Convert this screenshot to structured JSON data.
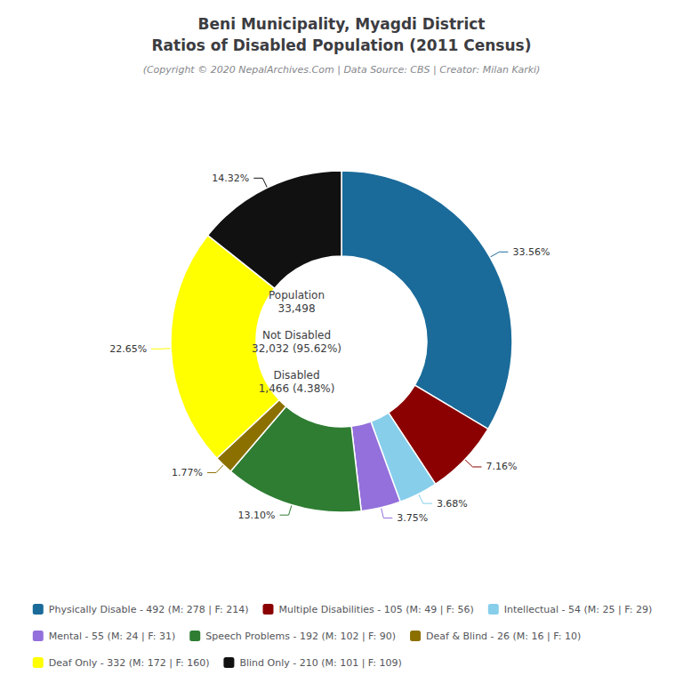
{
  "chart_data": {
    "type": "pie",
    "title": "Beni Municipality, Myagdi District\nRatios of Disabled Population (2011 Census)",
    "subtitle": "(Copyright © 2020 NepalArchives.Com | Data Source: CBS | Creator: Milan Karki)",
    "annotations": [
      "Population\n33,498\n\nNot Disabled\n32,032 (95.62%)\n\nDisabled\n1,466 (4.38%)"
    ],
    "categories": [
      "Physically Disable - 492 (M: 278 | F: 214)",
      "Multiple Disabilities - 105 (M: 49 | F: 56)",
      "Intellectual - 54 (M: 25 | F: 29)",
      "Mental - 55 (M: 24 | F: 31)",
      "Speech Problems - 192 (M: 102 | F: 90)",
      "Deaf & Blind - 26 (M: 16 | F: 10)",
      "Deaf Only - 332 (M: 172 | F: 160)",
      "Blind Only - 210 (M: 101 | F: 109)"
    ],
    "values": [
      33.56,
      7.16,
      3.68,
      3.75,
      13.1,
      1.77,
      22.65,
      14.32
    ],
    "value_labels": [
      "33.56%",
      "7.16%",
      "3.68%",
      "3.75%",
      "13.10%",
      "1.77%",
      "22.65%",
      "14.32%"
    ],
    "colors": [
      "#1a6b9a",
      "#8b0000",
      "#87ceeb",
      "#9370db",
      "#2e7d32",
      "#8b7000",
      "#ffff00",
      "#111111"
    ],
    "data_labels": true,
    "legend": "bottom"
  }
}
